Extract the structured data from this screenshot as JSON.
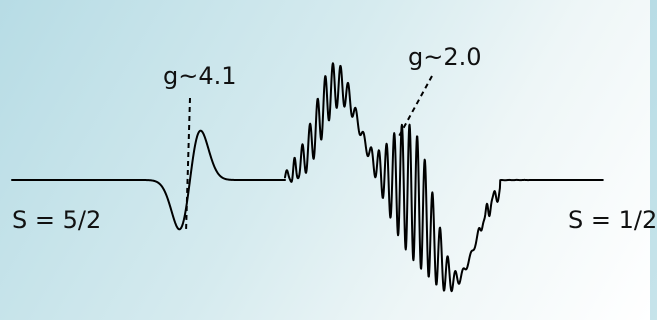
{
  "labels": {
    "g_left": "g~4.1",
    "g_right": "g~2.0",
    "spin_left": "S = 5/2",
    "spin_right": "S = 1/2"
  },
  "colors": {
    "trace": "#000000",
    "background_start": "#b7dce5",
    "background_end": "#ffffff"
  }
}
